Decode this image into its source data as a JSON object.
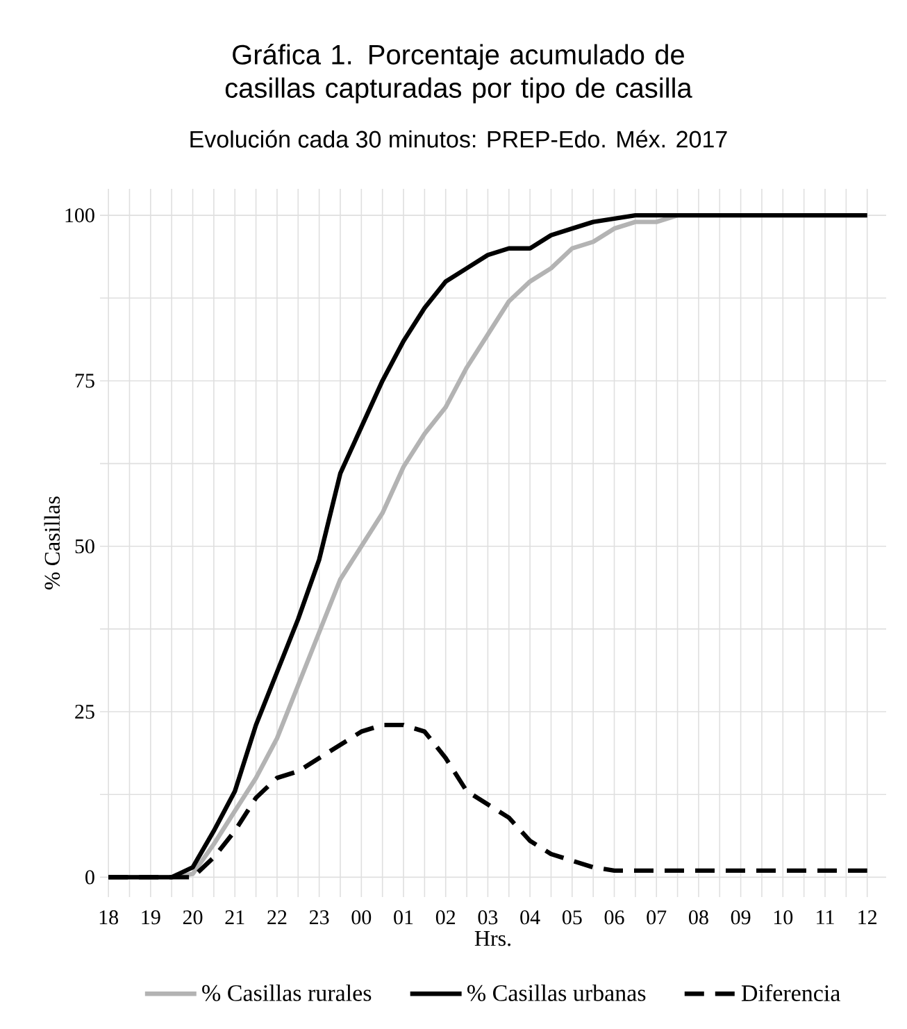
{
  "chart_data": {
    "type": "line",
    "title": "Gráfica 1. Porcentaje acumulado de casillas capturadas por tipo de casilla",
    "subtitle": "Evolución cada 30 minutos: PREP-Edo. Méx. 2017",
    "xlabel": "Hrs.",
    "ylabel": "% Casillas",
    "categories": [
      "18",
      null,
      "19",
      null,
      "20",
      null,
      "21",
      null,
      "22",
      null,
      "23",
      null,
      "00",
      null,
      "01",
      null,
      "02",
      null,
      "03",
      null,
      "04",
      null,
      "05",
      null,
      "06",
      null,
      "07",
      null,
      "08",
      null,
      "09",
      null,
      "10",
      null,
      "11",
      null,
      "12"
    ],
    "series": [
      {
        "name": "% Casillas rurales",
        "color": "#b3b3b3",
        "values": [
          0,
          0,
          0,
          0,
          0.5,
          5,
          10,
          15,
          21,
          29,
          37,
          45,
          50,
          55,
          62,
          67,
          71,
          77,
          82,
          87,
          90,
          92,
          95,
          96,
          98,
          99,
          99,
          100,
          100,
          100,
          100,
          100,
          100,
          100,
          100,
          100,
          100
        ]
      },
      {
        "name": "% Casillas urbanas",
        "color": "#000000",
        "values": [
          0,
          0,
          0,
          0,
          1.5,
          7,
          13,
          23,
          31,
          39,
          48,
          61,
          68,
          75,
          81,
          86,
          90,
          92,
          94,
          95,
          95,
          97,
          98,
          99,
          99.5,
          100,
          100,
          100,
          100,
          100,
          100,
          100,
          100,
          100,
          100,
          100,
          100
        ]
      },
      {
        "name": "Diferencia",
        "color": "#000000",
        "line_style": "dashed",
        "values": [
          0,
          0,
          0,
          0,
          0,
          3,
          7,
          12,
          15,
          16,
          18,
          20,
          22,
          23,
          23,
          22,
          18,
          13,
          11,
          9,
          5.5,
          3.5,
          2.5,
          1.5,
          1,
          1,
          1,
          1,
          1,
          1,
          1,
          1,
          1,
          1,
          1,
          1,
          1
        ]
      }
    ],
    "ylim": [
      -3,
      104
    ],
    "yticks": [
      0,
      {
        "value": 12.5,
        "label": null
      },
      25,
      {
        "value": 37.5,
        "label": null
      },
      50,
      {
        "value": 62.5,
        "label": null
      },
      75,
      {
        "value": 87.5,
        "label": null
      },
      100
    ],
    "grid": true,
    "legend": "bottom",
    "line_style": "solid",
    "marker": "none"
  }
}
